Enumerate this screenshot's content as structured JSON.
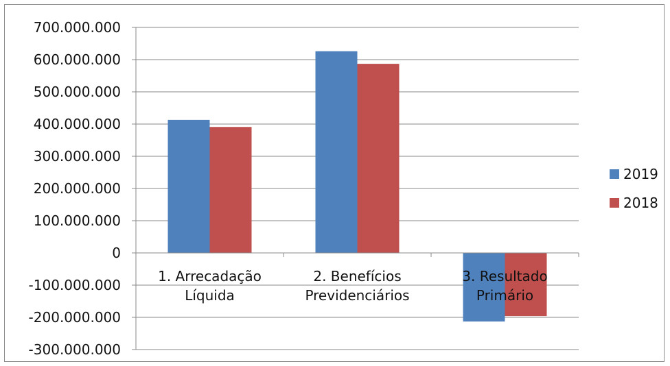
{
  "chart_data": {
    "type": "bar",
    "title": "",
    "xlabel": "",
    "ylabel": "",
    "categories": [
      [
        "1. Arrecadação",
        "Líquida"
      ],
      [
        "2. Benefícios",
        "Previdenciários"
      ],
      [
        "3. Resultado",
        "Primário"
      ]
    ],
    "series": [
      {
        "name": "2019",
        "color": "#4f81bd",
        "values": [
          413000000,
          626000000,
          -213000000
        ]
      },
      {
        "name": "2018",
        "color": "#c0504d",
        "values": [
          391000000,
          587000000,
          -196000000
        ]
      }
    ],
    "ylim": [
      -300000000,
      700000000
    ],
    "yticks": [
      700000000,
      600000000,
      500000000,
      400000000,
      300000000,
      200000000,
      100000000,
      0,
      -100000000,
      -200000000,
      -300000000
    ],
    "ytick_labels": [
      "700.000.000",
      "600.000.000",
      "500.000.000",
      "400.000.000",
      "300.000.000",
      "200.000.000",
      "100.000.000",
      "0",
      "-100.000.000",
      "-200.000.000",
      "-300.000.000"
    ],
    "grid": true,
    "legend_position": "right"
  }
}
